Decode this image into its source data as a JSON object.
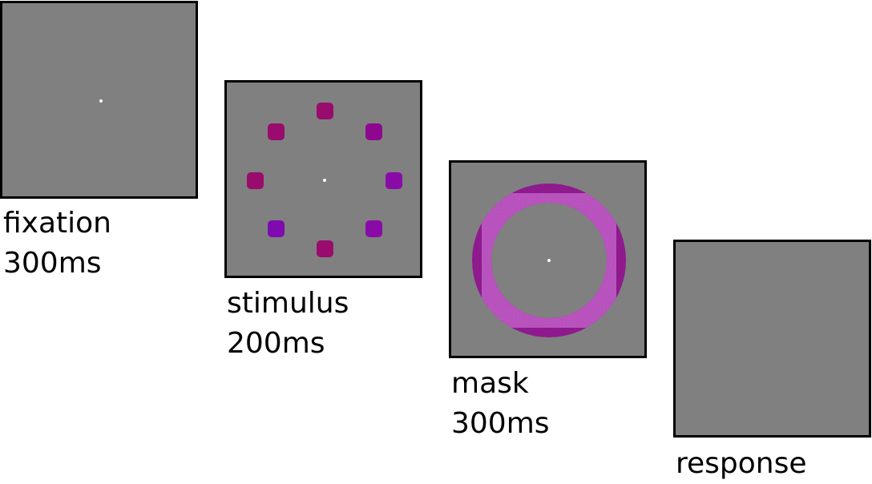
{
  "stages": [
    {
      "label": "fixation",
      "duration": "300ms"
    },
    {
      "label": "stimulus",
      "duration": "200ms"
    },
    {
      "label": "mask",
      "duration": "300ms"
    },
    {
      "label": "response",
      "duration": ""
    }
  ],
  "colors": {
    "screen": "#808080",
    "border": "#000000",
    "fixation_dot": "#ffffff",
    "stimulus_squares": [
      "#9a0b6e",
      "#8e088f",
      "#9a0b6e",
      "#8a0aa8",
      "#9a0b6e",
      "#8a0aa8",
      "#9a0b6e",
      "#8a0aa8"
    ],
    "mask_ring": "#8e1a8e"
  }
}
